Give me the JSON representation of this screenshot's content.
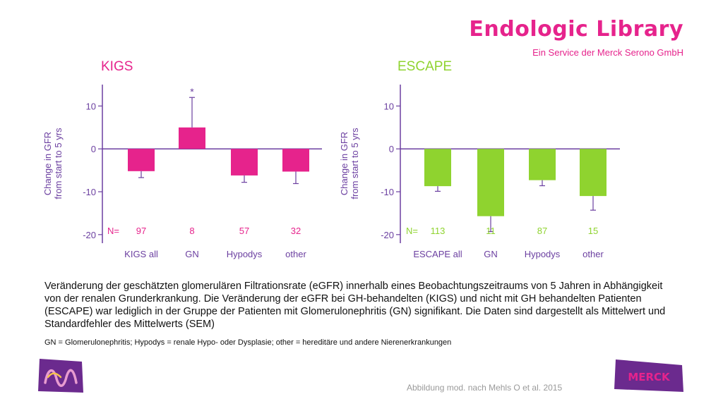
{
  "header": {
    "brand": "Endologic Library",
    "tagline": "Ein Service der Merck Serono GmbH"
  },
  "chart_data": [
    {
      "type": "bar",
      "title": "KIGS",
      "ylabel_line1": "Change in GFR",
      "ylabel_line2": "from start to 5 yrs",
      "categories": [
        "KIGS all",
        "GN",
        "Hypodys",
        "other"
      ],
      "values": [
        -5.2,
        5.0,
        -6.2,
        -5.3
      ],
      "errors": [
        1.5,
        7.0,
        1.6,
        2.8
      ],
      "n_label": "N=",
      "n_values": [
        "97",
        "8",
        "57",
        "32"
      ],
      "annotation": "*",
      "annotation_index": 1,
      "yticks": [
        "10",
        "0",
        "-10",
        "-20"
      ],
      "ylim": [
        -22,
        15
      ],
      "color": "#e6238c"
    },
    {
      "type": "bar",
      "title": "ESCAPE",
      "ylabel_line1": "Change in GFR",
      "ylabel_line2": "from start to 5 yrs",
      "categories": [
        "ESCAPE all",
        "GN",
        "Hypodys",
        "other"
      ],
      "values": [
        -8.7,
        -15.7,
        -7.3,
        -11.0
      ],
      "errors": [
        1.2,
        3.6,
        1.3,
        3.3
      ],
      "n_label": "N=",
      "n_values": [
        "113",
        "11",
        "87",
        "15"
      ],
      "yticks": [
        "10",
        "0",
        "-10",
        "-20"
      ],
      "ylim": [
        -22,
        15
      ],
      "color": "#8fd32f"
    }
  ],
  "caption": "Veränderung der geschätzten glomerulären Filtrationsrate (eGFR) innerhalb eines Beobachtungszeitraums von 5 Jahren in Abhängigkeit von der renalen Grunderkrankung. Die Veränderung der eGFR bei GH-behandelten (KIGS) und nicht mit GH behandelten Patienten (ESCAPE) war lediglich in der Gruppe der Patienten mit Glomerulonephritis (GN) signifikant. Die Daten sind dargestellt als Mittelwert und Standardfehler des Mittelwerts (SEM)",
  "footnote": "GN = Glomerulonephritis; Hypodys = renale Hypo- oder Dysplasie; other = hereditäre und andere Nierenerkrankungen",
  "source": "Abbildung mod. nach Mehls O et al. 2015",
  "logos": {
    "right_logo_text": "MERCK"
  },
  "colors": {
    "axis": "#6b3fa0",
    "brand_pink": "#e6238c",
    "lime": "#8fd32f",
    "purple": "#6b2a8e"
  }
}
